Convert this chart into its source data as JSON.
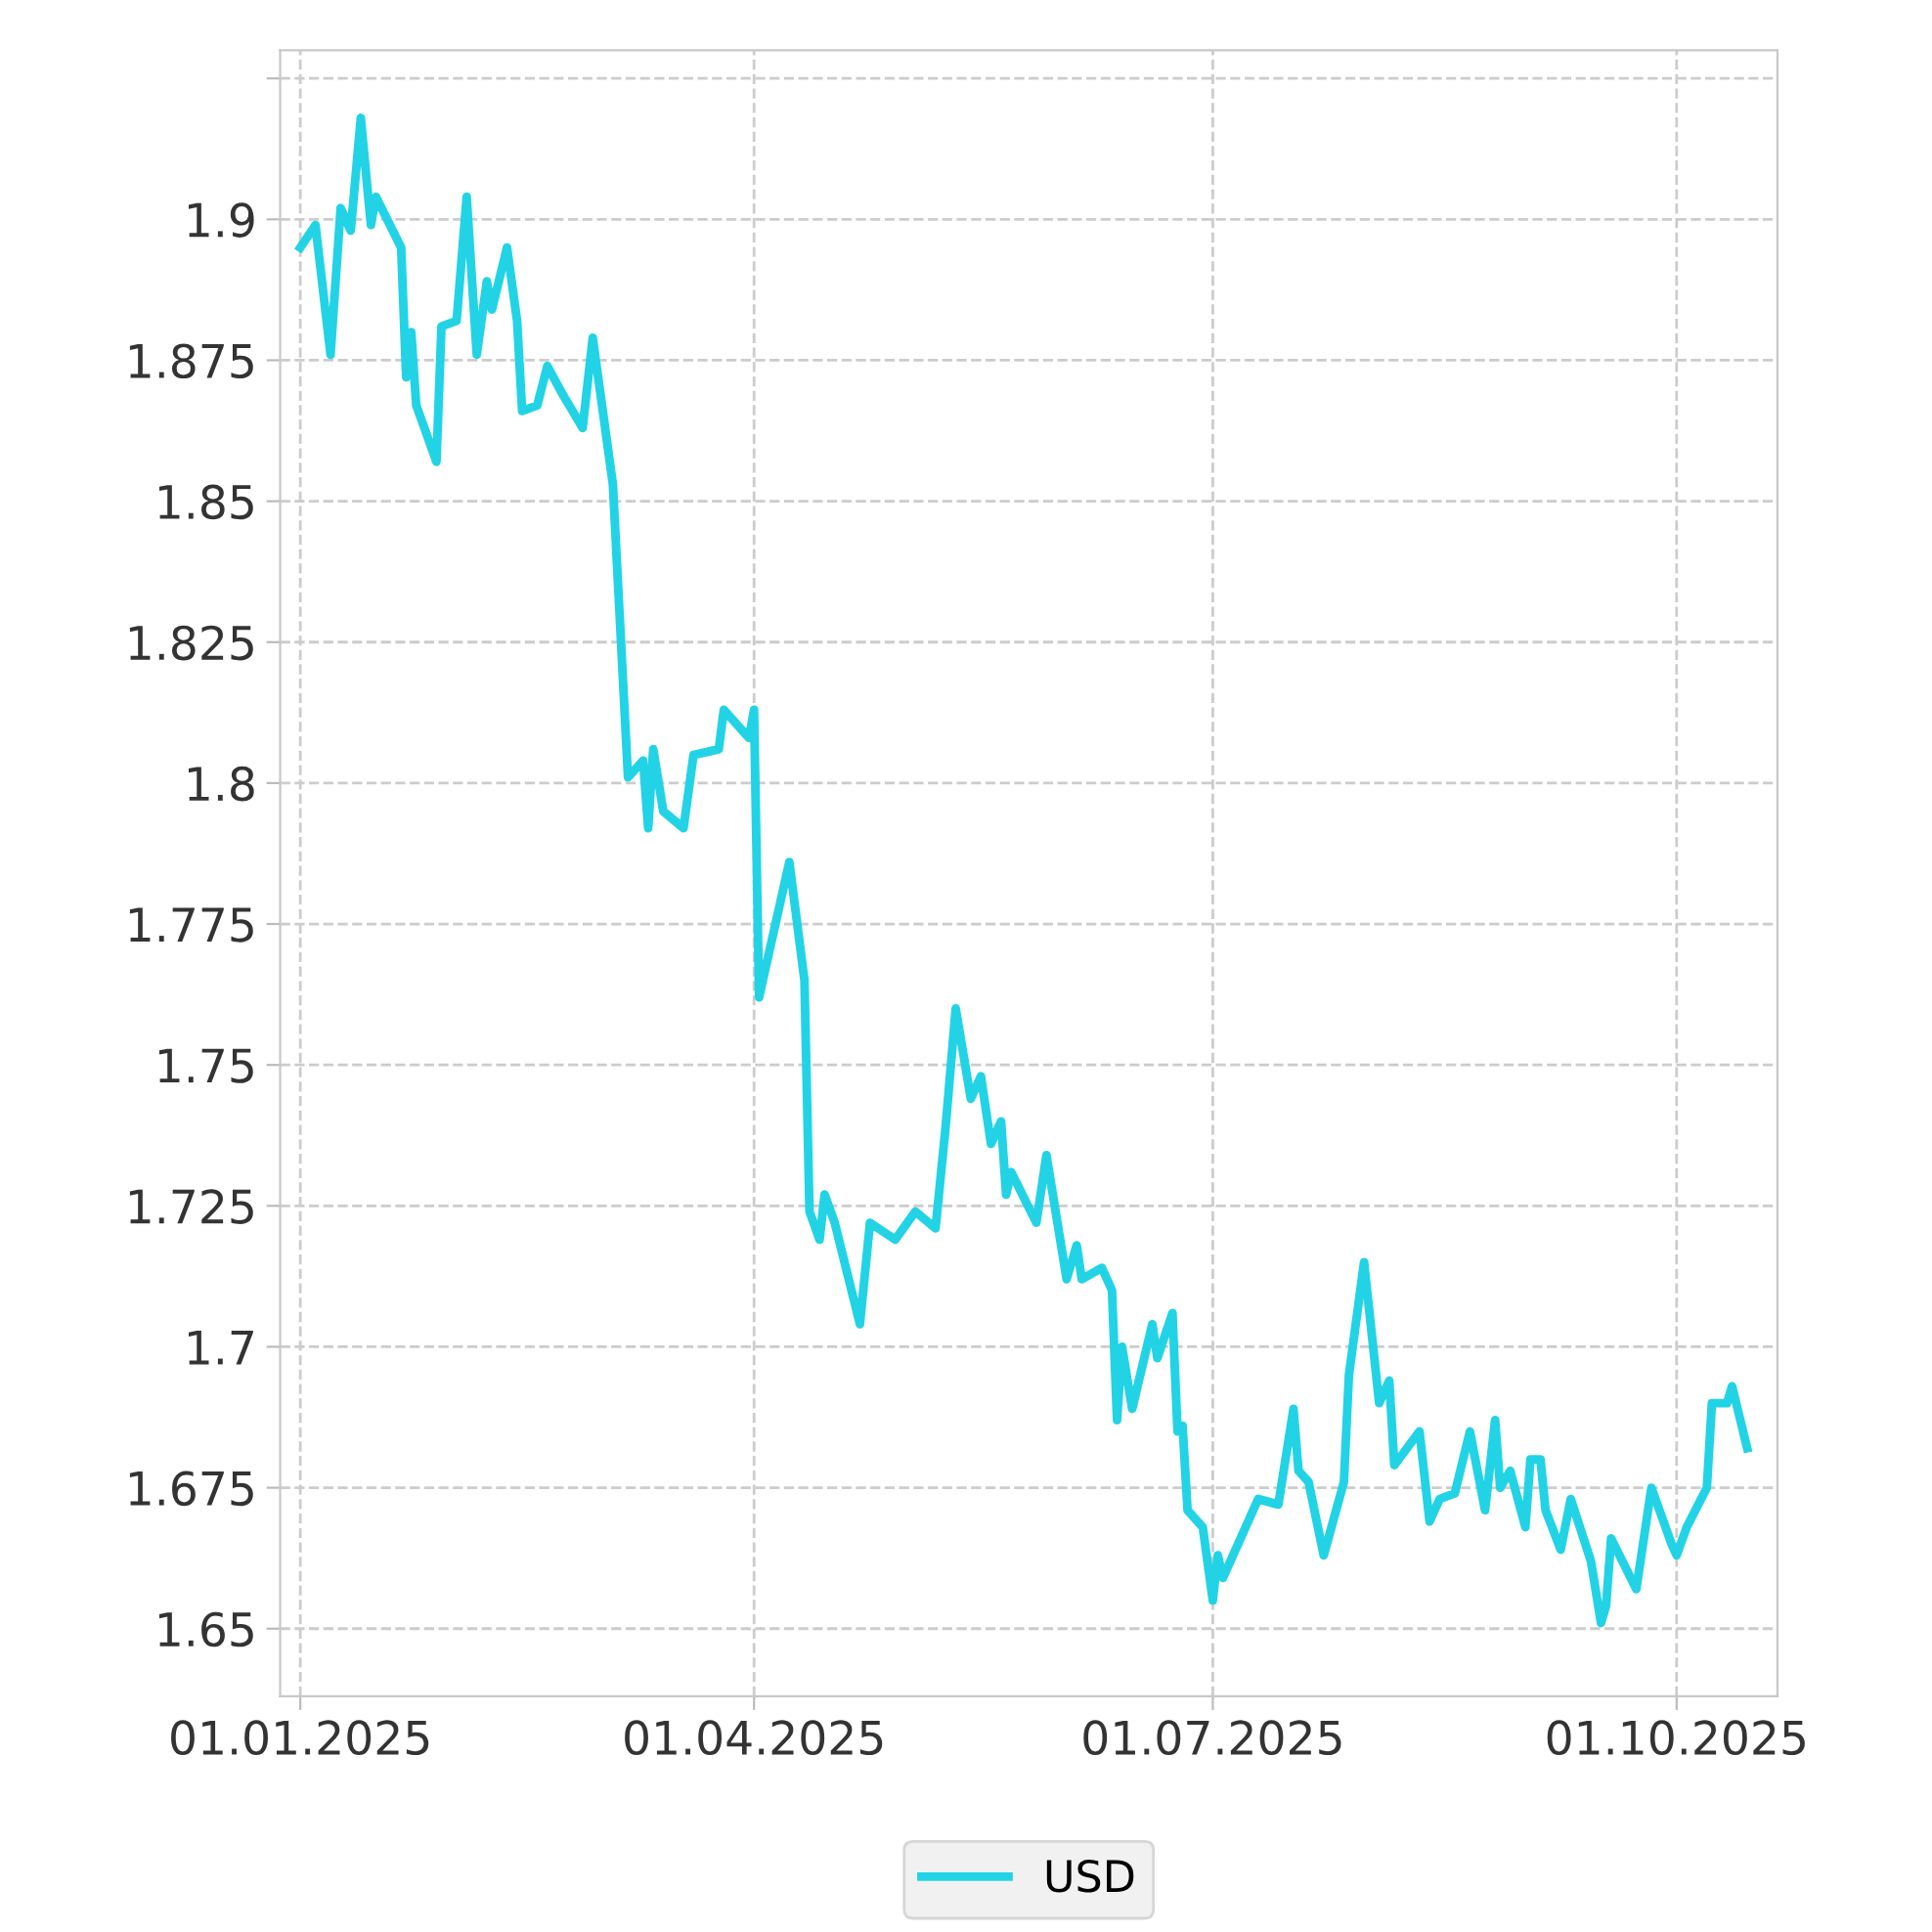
{
  "chart_data": {
    "type": "line",
    "xlim": [
      "2024-12-28",
      "2025-10-21"
    ],
    "xticks": [
      {
        "value": "2025-01-01",
        "label": "01.01.2025"
      },
      {
        "value": "2025-04-01",
        "label": "01.04.2025"
      },
      {
        "value": "2025-07-01",
        "label": "01.07.2025"
      },
      {
        "value": "2025-10-01",
        "label": "01.10.2025"
      }
    ],
    "ylim": [
      1.638,
      1.93
    ],
    "yticks": [
      1.65,
      1.675,
      1.7,
      1.725,
      1.75,
      1.775,
      1.8,
      1.825,
      1.85,
      1.875,
      1.9,
      {
        "value": 1.925,
        "label": null
      }
    ],
    "grid": true,
    "legend": "bottom",
    "marker": "none",
    "line_style": "solid",
    "series": [
      {
        "name": "USD",
        "color": "#22d3e6",
        "x": [
          "2025-01-01",
          "2025-01-04",
          "2025-01-07",
          "2025-01-09",
          "2025-01-11",
          "2025-01-13",
          "2025-01-15",
          "2025-01-16",
          "2025-01-21",
          "2025-01-22",
          "2025-01-23",
          "2025-01-24",
          "2025-01-28",
          "2025-01-29",
          "2025-02-01",
          "2025-02-03",
          "2025-02-05",
          "2025-02-07",
          "2025-02-08",
          "2025-02-11",
          "2025-02-13",
          "2025-02-14",
          "2025-02-17",
          "2025-02-19",
          "2025-02-22",
          "2025-02-26",
          "2025-02-28",
          "2025-03-04",
          "2025-03-07",
          "2025-03-10",
          "2025-03-11",
          "2025-03-12",
          "2025-03-14",
          "2025-03-18",
          "2025-03-20",
          "2025-03-25",
          "2025-03-26",
          "2025-03-31",
          "2025-04-01",
          "2025-04-02",
          "2025-04-08",
          "2025-04-11",
          "2025-04-12",
          "2025-04-14",
          "2025-04-15",
          "2025-04-17",
          "2025-04-22",
          "2025-04-24",
          "2025-04-29",
          "2025-05-03",
          "2025-05-07",
          "2025-05-09",
          "2025-05-11",
          "2025-05-14",
          "2025-05-16",
          "2025-05-18",
          "2025-05-20",
          "2025-05-21",
          "2025-05-22",
          "2025-05-27",
          "2025-05-29",
          "2025-06-02",
          "2025-06-04",
          "2025-06-05",
          "2025-06-09",
          "2025-06-11",
          "2025-06-12",
          "2025-06-13",
          "2025-06-15",
          "2025-06-19",
          "2025-06-20",
          "2025-06-23",
          "2025-06-24",
          "2025-06-25",
          "2025-06-26",
          "2025-06-29",
          "2025-07-01",
          "2025-07-02",
          "2025-07-03",
          "2025-07-08",
          "2025-07-10",
          "2025-07-14",
          "2025-07-17",
          "2025-07-18",
          "2025-07-20",
          "2025-07-23",
          "2025-07-27",
          "2025-07-28",
          "2025-07-31",
          "2025-08-03",
          "2025-08-05",
          "2025-08-06",
          "2025-08-11",
          "2025-08-13",
          "2025-08-15",
          "2025-08-18",
          "2025-08-21",
          "2025-08-24",
          "2025-08-26",
          "2025-08-27",
          "2025-08-29",
          "2025-09-01",
          "2025-09-02",
          "2025-09-04",
          "2025-09-05",
          "2025-09-08",
          "2025-09-10",
          "2025-09-14",
          "2025-09-16",
          "2025-09-17",
          "2025-09-18",
          "2025-09-23",
          "2025-09-26",
          "2025-09-30",
          "2025-10-01",
          "2025-10-03",
          "2025-10-07",
          "2025-10-08",
          "2025-10-11",
          "2025-10-12",
          "2025-10-15"
        ],
        "values": [
          1.895,
          1.899,
          1.876,
          1.902,
          1.898,
          1.918,
          1.899,
          1.904,
          1.895,
          1.872,
          1.88,
          1.867,
          1.857,
          1.881,
          1.882,
          1.904,
          1.876,
          1.889,
          1.884,
          1.895,
          1.882,
          1.866,
          1.867,
          1.874,
          1.869,
          1.863,
          1.879,
          1.853,
          1.801,
          1.804,
          1.792,
          1.806,
          1.795,
          1.792,
          1.805,
          1.806,
          1.813,
          1.808,
          1.813,
          1.762,
          1.786,
          1.765,
          1.724,
          1.719,
          1.727,
          1.722,
          1.704,
          1.722,
          1.719,
          1.724,
          1.721,
          1.739,
          1.76,
          1.744,
          1.748,
          1.736,
          1.74,
          1.727,
          1.731,
          1.722,
          1.734,
          1.712,
          1.718,
          1.712,
          1.714,
          1.71,
          1.687,
          1.7,
          1.689,
          1.704,
          1.698,
          1.706,
          1.685,
          1.686,
          1.671,
          1.668,
          1.655,
          1.663,
          1.659,
          1.669,
          1.673,
          1.672,
          1.689,
          1.678,
          1.676,
          1.663,
          1.676,
          1.695,
          1.715,
          1.69,
          1.694,
          1.679,
          1.685,
          1.669,
          1.673,
          1.674,
          1.685,
          1.671,
          1.687,
          1.675,
          1.678,
          1.668,
          1.68,
          1.68,
          1.671,
          1.664,
          1.673,
          1.662,
          1.651,
          1.654,
          1.666,
          1.657,
          1.675,
          1.665,
          1.663,
          1.668,
          1.675,
          1.69,
          1.69,
          1.693,
          1.682
        ]
      }
    ]
  }
}
